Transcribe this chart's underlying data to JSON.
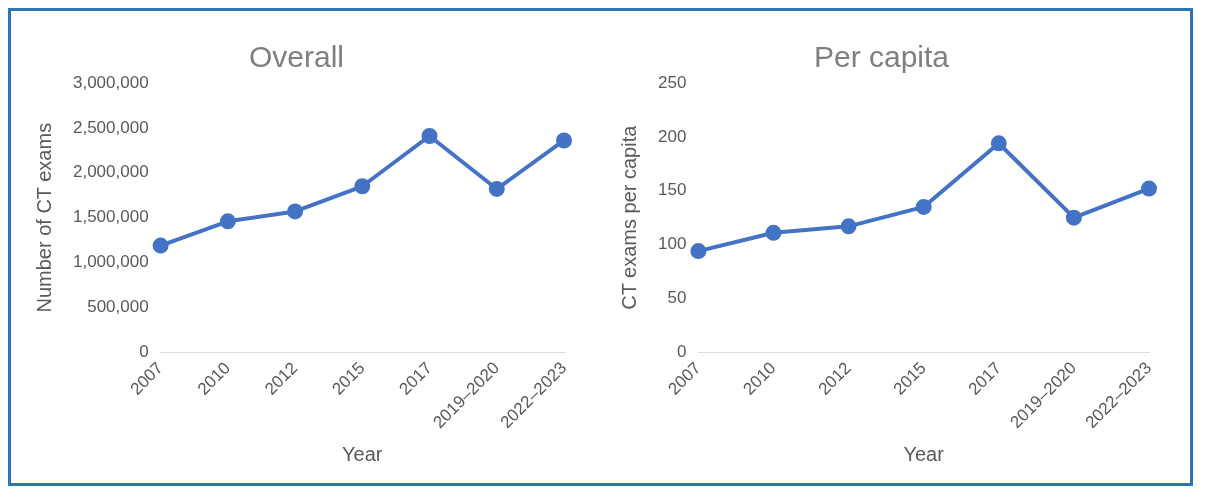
{
  "chart_data": [
    {
      "type": "line",
      "title": "Overall",
      "xlabel": "Year",
      "ylabel": "Number of CT exams",
      "categories": [
        "2007",
        "2010",
        "2012",
        "2015",
        "2017",
        "2019–2020",
        "2022–2023"
      ],
      "series": [
        {
          "color": "#4472c4",
          "values": [
            1190000,
            1460000,
            1570000,
            1850000,
            2410000,
            1820000,
            2360000
          ]
        }
      ],
      "ylim": [
        0,
        3000000
      ],
      "yticks": [
        {
          "value": 0,
          "label": "0"
        },
        {
          "value": 500000,
          "label": "500,000"
        },
        {
          "value": 1000000,
          "label": "1,000,000"
        },
        {
          "value": 1500000,
          "label": "1,500,000"
        },
        {
          "value": 2000000,
          "label": "2,000,000"
        },
        {
          "value": 2500000,
          "label": "2,500,000"
        },
        {
          "value": 3000000,
          "label": "3,000,000"
        }
      ],
      "grid": false,
      "legend": false,
      "marker": "circle",
      "line_style": "solid"
    },
    {
      "type": "line",
      "title": "Per capita",
      "xlabel": "Year",
      "ylabel": "CT exams per capita",
      "categories": [
        "2007",
        "2010",
        "2012",
        "2015",
        "2017",
        "2019–2020",
        "2022–2023"
      ],
      "series": [
        {
          "color": "#4472c4",
          "values": [
            94,
            111,
            117,
            135,
            194,
            125,
            152
          ]
        }
      ],
      "ylim": [
        0,
        250
      ],
      "yticks": [
        0,
        50,
        100,
        150,
        200,
        250
      ],
      "grid": false,
      "legend": false,
      "marker": "circle",
      "line_style": "solid"
    }
  ]
}
